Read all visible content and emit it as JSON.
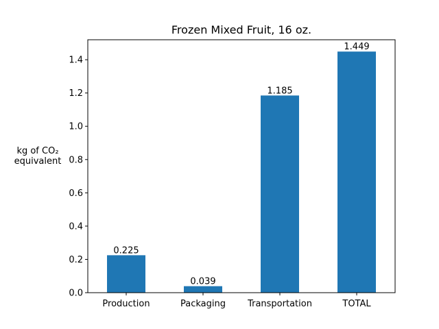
{
  "chart_data": {
    "type": "bar",
    "title": "Frozen Mixed Fruit, 16 oz.",
    "xlabel": "",
    "ylabel_lines": [
      "kg of CO₂",
      "equivalent"
    ],
    "categories": [
      "Production",
      "Packaging",
      "Transportation",
      "TOTAL"
    ],
    "values": [
      0.225,
      0.039,
      1.185,
      1.449
    ],
    "value_labels": [
      "0.225",
      "0.039",
      "1.185",
      "1.449"
    ],
    "ylim": [
      0,
      1.52
    ],
    "yticks": [
      0.0,
      0.2,
      0.4,
      0.6,
      0.8,
      1.0,
      1.2,
      1.4
    ],
    "ytick_labels": [
      "0.0",
      "0.2",
      "0.4",
      "0.6",
      "0.8",
      "1.0",
      "1.2",
      "1.4"
    ],
    "bar_color": "#1f77b4",
    "grid": false,
    "legend": "none"
  }
}
